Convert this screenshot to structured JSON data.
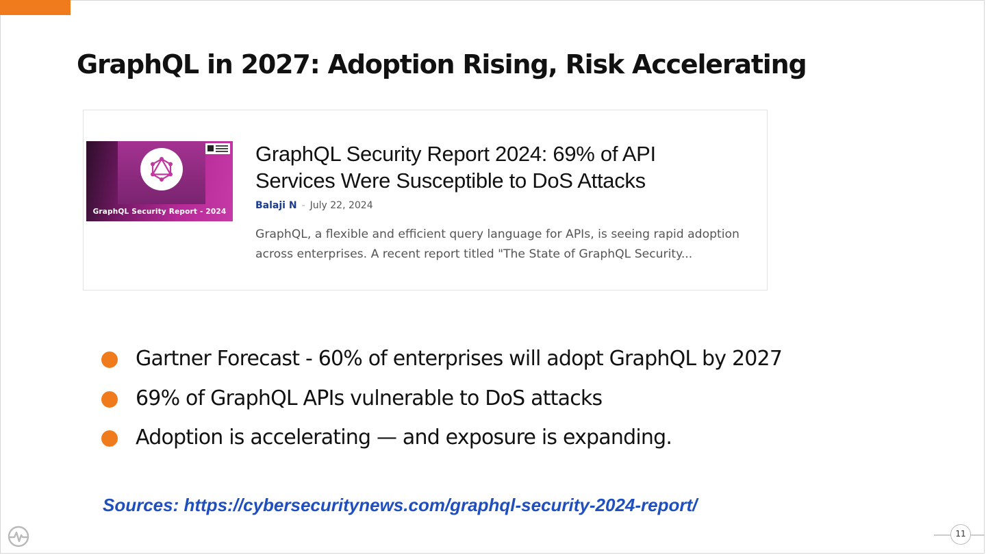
{
  "slide": {
    "title": "GraphQL in 2027: Adoption Rising, Risk Accelerating",
    "page_number": "11",
    "accent_color": "#f07b1c"
  },
  "article": {
    "thumbnail_caption": "GraphQL Security Report - 2024",
    "thumbnail_icon": "graphql-logo-icon",
    "headline": "GraphQL Security Report 2024: 69% of API Services Were Susceptible to DoS Attacks",
    "author": "Balaji N",
    "separator": "-",
    "date": "July 22, 2024",
    "excerpt": "GraphQL, a flexible and efficient query language for APIs, is seeing rapid adoption across enterprises. A recent report titled \"The State of GraphQL Security..."
  },
  "bullets": [
    "Gartner Forecast - 60% of enterprises will adopt GraphQL by 2027",
    "69% of GraphQL APIs vulnerable to DoS attacks",
    "Adoption is accelerating — and exposure is expanding."
  ],
  "sources": {
    "text": "Sources: https://cybersecuritynews.com/graphql-security-2024-report/"
  },
  "footer": {
    "logo_icon": "brand-pulse-logo-icon"
  }
}
